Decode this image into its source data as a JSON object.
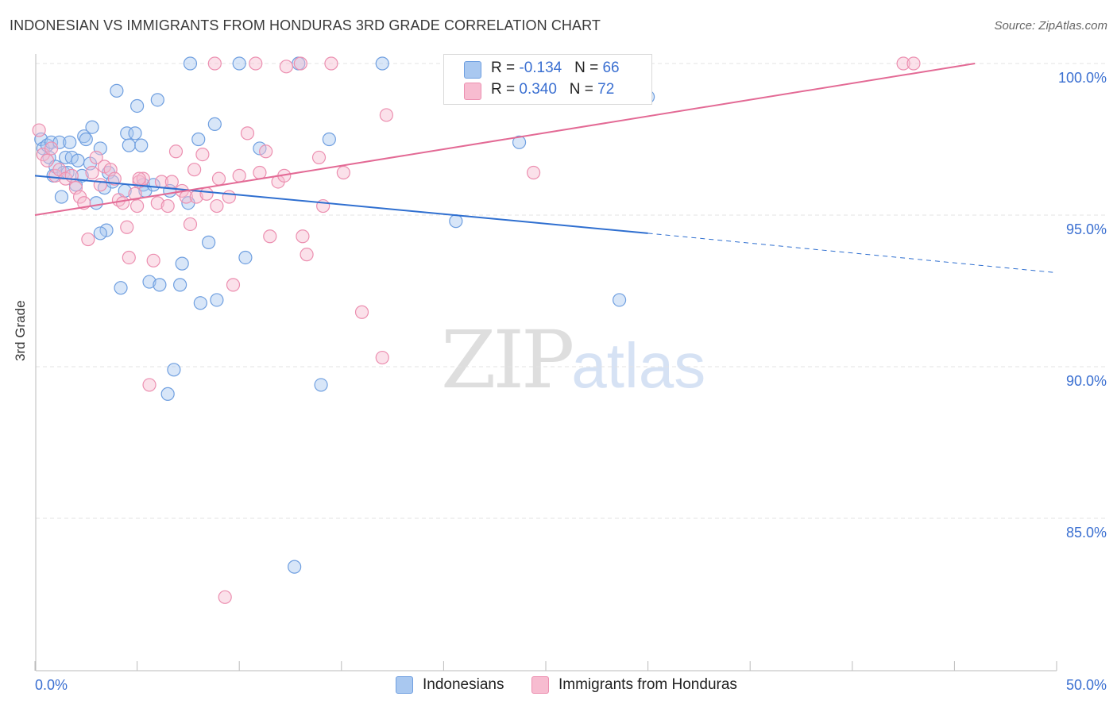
{
  "header": {
    "title": "INDONESIAN VS IMMIGRANTS FROM HONDURAS 3RD GRADE CORRELATION CHART",
    "source": "Source: ZipAtlas.com"
  },
  "watermark": {
    "zip": "ZIP",
    "atlas": "atlas"
  },
  "colors": {
    "blue_fill": "#a9c8f0",
    "blue_stroke": "#6f9fe0",
    "blue_line": "#2f6fd0",
    "pink_fill": "#f7bcd0",
    "pink_stroke": "#ec8fb0",
    "pink_line": "#e36a95",
    "grid": "#e3e3e3",
    "axis_text": "#3a6fd1"
  },
  "legend_top": {
    "rows": [
      {
        "r_label": "R = ",
        "r_value": "-0.134",
        "n_label": "N = ",
        "n_value": "66"
      },
      {
        "r_label": "R = ",
        "r_value": "0.340",
        "n_label": "N = ",
        "n_value": "72"
      }
    ]
  },
  "legend_bottom": {
    "items": [
      "Indonesians",
      "Immigrants from Honduras"
    ]
  },
  "chart_data": {
    "type": "scatter",
    "title": "INDONESIAN VS IMMIGRANTS FROM HONDURAS 3RD GRADE CORRELATION CHART",
    "xlabel": "",
    "ylabel": "3rd Grade",
    "xlim": [
      0,
      50
    ],
    "ylim": [
      80.5,
      100.3
    ],
    "x_tick_labels": [
      "0.0%",
      "50.0%"
    ],
    "y_ticks": [
      85,
      90,
      95,
      100
    ],
    "y_tick_labels": [
      "85.0%",
      "90.0%",
      "95.0%",
      "100.0%"
    ],
    "grid": "horizontal dashed",
    "legend_position": "top-center",
    "series": [
      {
        "name": "Indonesians",
        "r": -0.134,
        "n": 66,
        "trend": {
          "x0": 0,
          "y0": 96.3,
          "x1": 30,
          "y1": 94.4,
          "dashed_to_x": 50,
          "dashed_to_y": 93.1
        },
        "points": [
          [
            0.3,
            97.5
          ],
          [
            0.4,
            97.2
          ],
          [
            0.6,
            97.3
          ],
          [
            0.7,
            96.9
          ],
          [
            0.8,
            97.4
          ],
          [
            0.9,
            96.3
          ],
          [
            1.0,
            96.6
          ],
          [
            1.2,
            97.4
          ],
          [
            1.3,
            95.6
          ],
          [
            1.4,
            96.4
          ],
          [
            1.5,
            96.9
          ],
          [
            1.7,
            97.4
          ],
          [
            1.8,
            96.9
          ],
          [
            2.0,
            96.0
          ],
          [
            2.1,
            96.8
          ],
          [
            2.3,
            96.3
          ],
          [
            2.4,
            97.6
          ],
          [
            2.5,
            97.5
          ],
          [
            2.7,
            96.7
          ],
          [
            2.8,
            97.9
          ],
          [
            3.0,
            95.4
          ],
          [
            3.2,
            97.2
          ],
          [
            3.4,
            95.9
          ],
          [
            3.5,
            94.5
          ],
          [
            3.6,
            96.4
          ],
          [
            3.8,
            96.1
          ],
          [
            4.0,
            99.1
          ],
          [
            4.2,
            92.6
          ],
          [
            4.4,
            95.8
          ],
          [
            4.5,
            97.7
          ],
          [
            4.6,
            97.3
          ],
          [
            4.9,
            97.7
          ],
          [
            5.0,
            98.6
          ],
          [
            5.2,
            97.3
          ],
          [
            5.3,
            96.0
          ],
          [
            5.4,
            95.8
          ],
          [
            5.6,
            92.8
          ],
          [
            5.8,
            96.0
          ],
          [
            6.0,
            98.8
          ],
          [
            6.1,
            92.7
          ],
          [
            6.5,
            89.1
          ],
          [
            6.6,
            95.8
          ],
          [
            6.8,
            89.9
          ],
          [
            7.1,
            92.7
          ],
          [
            7.2,
            93.4
          ],
          [
            7.5,
            95.4
          ],
          [
            7.6,
            100.0
          ],
          [
            8.0,
            97.5
          ],
          [
            8.1,
            92.1
          ],
          [
            8.5,
            94.1
          ],
          [
            8.8,
            98.0
          ],
          [
            8.9,
            92.2
          ],
          [
            10.0,
            100.0
          ],
          [
            10.3,
            93.6
          ],
          [
            11.0,
            97.2
          ],
          [
            12.7,
            83.4
          ],
          [
            12.9,
            100.0
          ],
          [
            14.0,
            89.4
          ],
          [
            14.4,
            97.5
          ],
          [
            17.0,
            100.0
          ],
          [
            20.6,
            94.8
          ],
          [
            23.7,
            97.4
          ],
          [
            28.6,
            92.2
          ],
          [
            30.0,
            98.9
          ],
          [
            3.2,
            94.4
          ],
          [
            1.6,
            96.4
          ]
        ]
      },
      {
        "name": "Immigrants from Honduras",
        "r": 0.34,
        "n": 72,
        "trend": {
          "x0": 0,
          "y0": 95.0,
          "x1": 46,
          "y1": 100.0
        },
        "points": [
          [
            0.2,
            97.8
          ],
          [
            0.4,
            97.0
          ],
          [
            0.6,
            96.8
          ],
          [
            0.8,
            97.2
          ],
          [
            1.0,
            96.3
          ],
          [
            1.2,
            96.5
          ],
          [
            1.5,
            96.2
          ],
          [
            1.8,
            96.3
          ],
          [
            2.0,
            95.9
          ],
          [
            2.2,
            95.6
          ],
          [
            2.4,
            95.4
          ],
          [
            2.6,
            94.2
          ],
          [
            2.8,
            96.4
          ],
          [
            3.0,
            96.9
          ],
          [
            3.2,
            96.0
          ],
          [
            3.4,
            96.6
          ],
          [
            3.7,
            96.5
          ],
          [
            3.9,
            96.2
          ],
          [
            4.1,
            95.5
          ],
          [
            4.3,
            95.4
          ],
          [
            4.5,
            94.6
          ],
          [
            4.6,
            93.6
          ],
          [
            4.9,
            95.7
          ],
          [
            5.0,
            95.3
          ],
          [
            5.1,
            96.1
          ],
          [
            5.3,
            96.2
          ],
          [
            5.6,
            89.4
          ],
          [
            5.8,
            93.5
          ],
          [
            6.0,
            95.4
          ],
          [
            6.2,
            96.1
          ],
          [
            6.5,
            95.3
          ],
          [
            6.7,
            96.1
          ],
          [
            6.9,
            97.1
          ],
          [
            7.2,
            95.8
          ],
          [
            7.4,
            95.6
          ],
          [
            7.6,
            94.7
          ],
          [
            7.8,
            96.5
          ],
          [
            7.9,
            95.6
          ],
          [
            8.2,
            97.0
          ],
          [
            8.4,
            95.7
          ],
          [
            8.8,
            100.0
          ],
          [
            8.9,
            95.3
          ],
          [
            9.0,
            96.2
          ],
          [
            9.3,
            82.4
          ],
          [
            9.5,
            95.6
          ],
          [
            9.7,
            92.7
          ],
          [
            10.0,
            96.3
          ],
          [
            10.4,
            97.7
          ],
          [
            10.8,
            100.0
          ],
          [
            11.0,
            96.4
          ],
          [
            11.3,
            97.1
          ],
          [
            11.5,
            94.3
          ],
          [
            11.9,
            96.1
          ],
          [
            12.2,
            96.3
          ],
          [
            12.3,
            99.9
          ],
          [
            13.0,
            100.0
          ],
          [
            13.1,
            94.3
          ],
          [
            13.3,
            93.7
          ],
          [
            13.9,
            96.9
          ],
          [
            14.1,
            95.3
          ],
          [
            14.5,
            100.0
          ],
          [
            15.1,
            96.4
          ],
          [
            16.0,
            91.8
          ],
          [
            17.0,
            90.3
          ],
          [
            17.2,
            98.3
          ],
          [
            24.1,
            100.0
          ],
          [
            24.4,
            96.4
          ],
          [
            27.8,
            100.0
          ],
          [
            28.2,
            100.0
          ],
          [
            42.5,
            100.0
          ],
          [
            43.0,
            100.0
          ],
          [
            5.1,
            96.2
          ]
        ]
      }
    ]
  }
}
